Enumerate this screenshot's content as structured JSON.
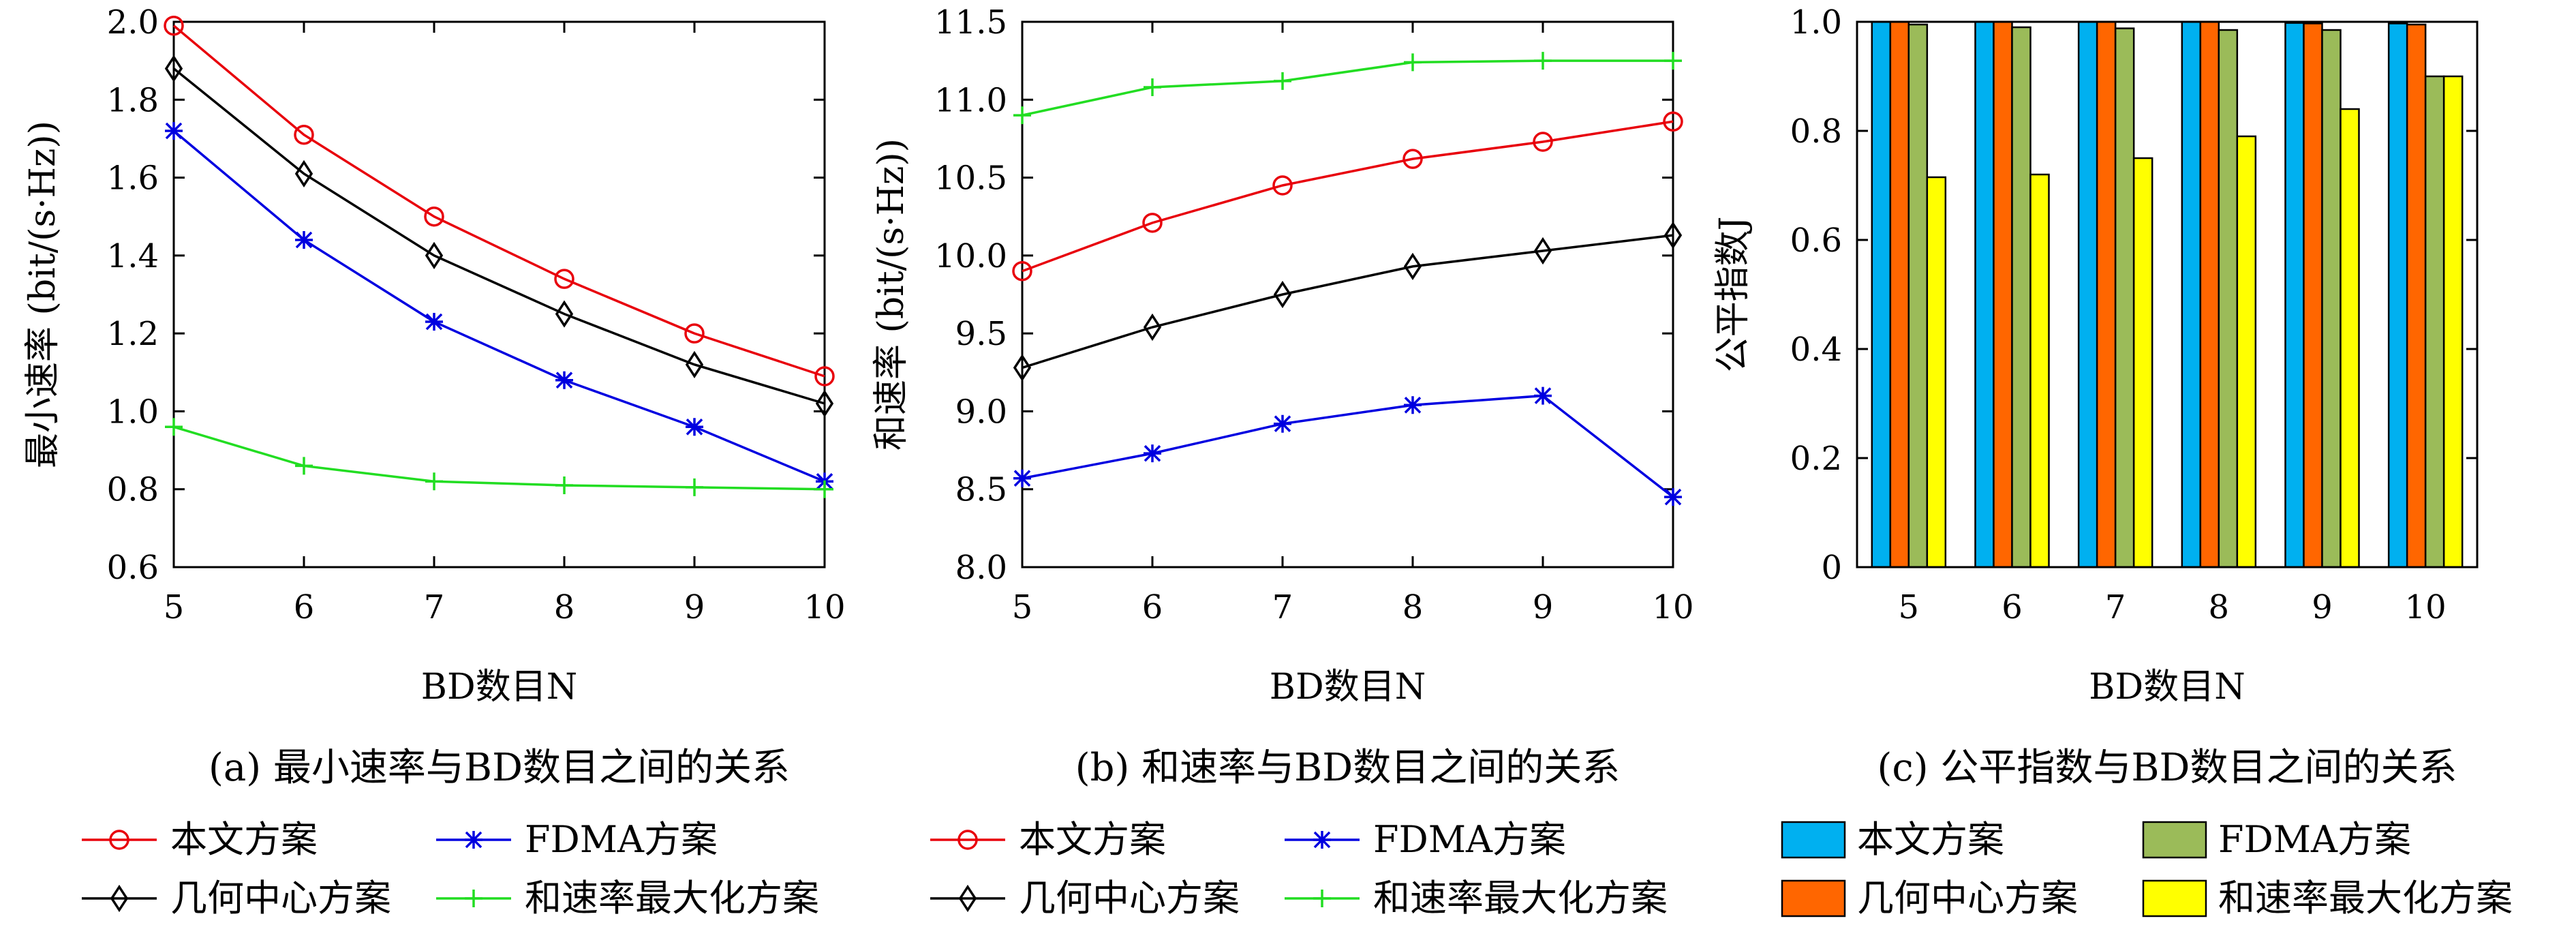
{
  "colors": {
    "ours": "#e8000b",
    "fdma": "#0000e0",
    "geo": "#000000",
    "maxsum": "#22dd22",
    "bar_ours": "#00b0f0",
    "bar_geo": "#ff6600",
    "bar_fdma": "#9bbb59",
    "bar_maxsum": "#ffff00"
  },
  "legend_names": {
    "ours": "本文方案",
    "fdma": "FDMA方案",
    "geo": "几何中心方案",
    "maxsum": "和速率最大化方案"
  },
  "chart_data": [
    {
      "type": "line",
      "caption": "(a) 最小速率与BD数目之间的关系",
      "xlabel": "BD数目N",
      "ylabel": "最小速率 (bit/(s·Hz))",
      "x": [
        5,
        6,
        7,
        8,
        9,
        10
      ],
      "xlim": [
        5,
        10
      ],
      "ylim": [
        0.6,
        2.0
      ],
      "yticks": [
        "0.6",
        "0.8",
        "1.0",
        "1.2",
        "1.4",
        "1.6",
        "1.8",
        "2.0"
      ],
      "grid": false,
      "legend_position": "below",
      "series": [
        {
          "key": "ours",
          "name": "本文方案",
          "marker": "circle",
          "values": [
            1.99,
            1.71,
            1.5,
            1.34,
            1.2,
            1.09
          ]
        },
        {
          "key": "fdma",
          "name": "FDMA方案",
          "marker": "asterisk",
          "values": [
            1.72,
            1.44,
            1.23,
            1.08,
            0.96,
            0.82
          ]
        },
        {
          "key": "geo",
          "name": "几何中心方案",
          "marker": "diamond",
          "values": [
            1.88,
            1.61,
            1.4,
            1.25,
            1.12,
            1.02
          ]
        },
        {
          "key": "maxsum",
          "name": "和速率最大化方案",
          "marker": "plus",
          "values": [
            0.96,
            0.86,
            0.82,
            0.81,
            0.805,
            0.8
          ]
        }
      ]
    },
    {
      "type": "line",
      "caption": "(b) 和速率与BD数目之间的关系",
      "xlabel": "BD数目N",
      "ylabel": "和速率 (bit/(s·Hz))",
      "x": [
        5,
        6,
        7,
        8,
        9,
        10
      ],
      "xlim": [
        5,
        10
      ],
      "ylim": [
        8.0,
        11.5
      ],
      "yticks": [
        "8.0",
        "8.5",
        "9.0",
        "9.5",
        "10.0",
        "10.5",
        "11.0",
        "11.5"
      ],
      "grid": false,
      "legend_position": "below",
      "series": [
        {
          "key": "ours",
          "name": "本文方案",
          "marker": "circle",
          "values": [
            9.9,
            10.21,
            10.45,
            10.62,
            10.73,
            10.86
          ]
        },
        {
          "key": "fdma",
          "name": "FDMA方案",
          "marker": "asterisk",
          "values": [
            8.57,
            8.73,
            8.92,
            9.04,
            9.1,
            8.45
          ]
        },
        {
          "key": "geo",
          "name": "几何中心方案",
          "marker": "diamond",
          "values": [
            9.28,
            9.54,
            9.75,
            9.93,
            10.03,
            10.13
          ]
        },
        {
          "key": "maxsum",
          "name": "和速率最大化方案",
          "marker": "plus",
          "values": [
            10.9,
            11.08,
            11.12,
            11.24,
            11.25,
            11.25
          ]
        }
      ]
    },
    {
      "type": "bar",
      "caption": "(c) 公平指数与BD数目之间的关系",
      "xlabel": "BD数目N",
      "ylabel": "公平指数J",
      "categories": [
        "5",
        "6",
        "7",
        "8",
        "9",
        "10"
      ],
      "ylim": [
        0,
        1.0
      ],
      "yticks": [
        "0",
        "0.2",
        "0.4",
        "0.6",
        "0.8",
        "1.0"
      ],
      "grid": false,
      "legend_position": "below",
      "series": [
        {
          "key": "bar_ours",
          "name": "本文方案",
          "values": [
            1.0,
            1.0,
            1.0,
            1.0,
            0.998,
            0.997
          ]
        },
        {
          "key": "bar_geo",
          "name": "几何中心方案",
          "values": [
            1.0,
            1.0,
            1.0,
            1.0,
            0.997,
            0.995
          ]
        },
        {
          "key": "bar_fdma",
          "name": "FDMA方案",
          "values": [
            0.995,
            0.99,
            0.988,
            0.985,
            0.985,
            0.9
          ]
        },
        {
          "key": "bar_maxsum",
          "name": "和速率最大化方案",
          "values": [
            0.715,
            0.72,
            0.75,
            0.79,
            0.84,
            0.9
          ]
        }
      ]
    }
  ]
}
